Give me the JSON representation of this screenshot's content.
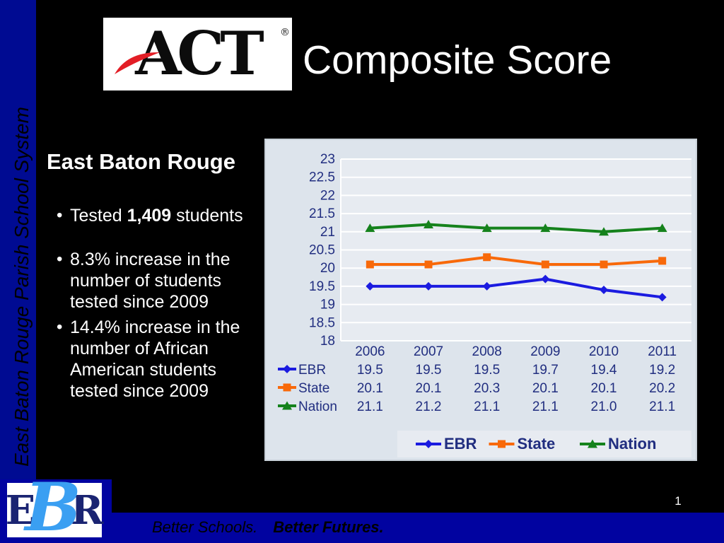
{
  "colors": {
    "left_bar_blue": "#000b92",
    "bottom_bar_blue": "#0103a0",
    "chart_text_navy": "#212e80",
    "panel_bg": "#dde4ec",
    "plot_bg": "#e7ebf1",
    "act_red": "#e31e26",
    "ebr_navy": "#1a2472",
    "ebr_light_blue": "#3a9ff2"
  },
  "side_text": "East Baton Rouge Parish School System",
  "header": {
    "act_logo": "ACT",
    "registered": "®",
    "title": "Composite Score"
  },
  "content": {
    "heading": "East Baton Rouge",
    "bullet_char": "•",
    "bullets": [
      {
        "pre": "Tested ",
        "bold": "1,409",
        "post": " students"
      },
      {
        "text": "8.3% increase in the\nnumber of students\ntested since 2009"
      },
      {
        "text": "14.4% increase in the\nnumber of African\nAmerican students\ntested since 2009"
      }
    ]
  },
  "footer": {
    "part1": "Better Schools.",
    "part2": "Better Futures.",
    "page_number": "1"
  },
  "ebr_logo": {
    "e": "E",
    "b": "B",
    "r": "R"
  },
  "chart_data": {
    "type": "line",
    "title": "",
    "x": [
      "2006",
      "2007",
      "2008",
      "2009",
      "2010",
      "2011"
    ],
    "series": [
      {
        "name": "EBR",
        "marker": "diamond",
        "color": "#1b1be0",
        "values": [
          19.5,
          19.5,
          19.5,
          19.7,
          19.4,
          19.2
        ]
      },
      {
        "name": "State",
        "marker": "square",
        "color": "#f8690a",
        "values": [
          20.1,
          20.1,
          20.3,
          20.1,
          20.1,
          20.2
        ]
      },
      {
        "name": "Nation",
        "marker": "triangle",
        "color": "#15821c",
        "values": [
          21.1,
          21.2,
          21.1,
          21.1,
          21.0,
          21.1
        ]
      }
    ],
    "ylim": [
      18,
      23
    ],
    "ytick_step": 0.5,
    "grid": true,
    "data_table": true,
    "legend_position": "bottom"
  }
}
